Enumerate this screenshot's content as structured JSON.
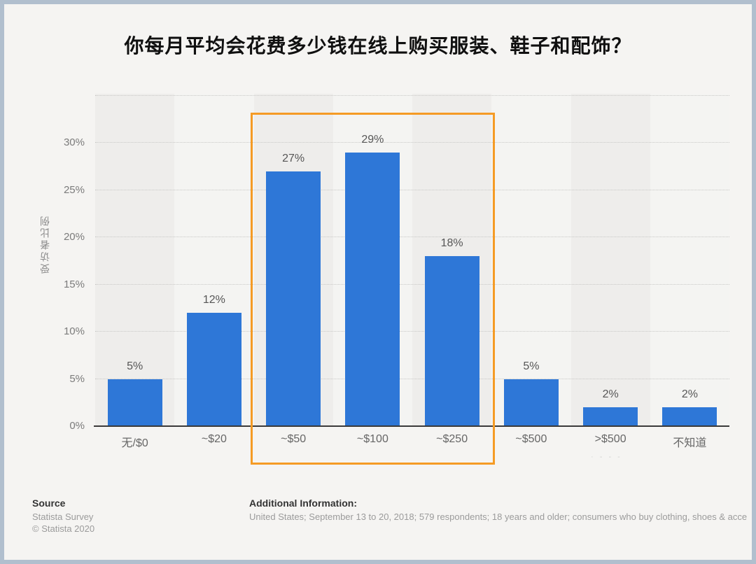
{
  "title": "你每月平均会花费多少钱在线上购买服装、鞋子和配饰？",
  "chart_data": {
    "type": "bar",
    "title": "你每月平均会花费多少钱在线上购买服装、鞋子和配饰？",
    "categories": [
      "无/$0",
      "~$20",
      "~$50",
      "~$100",
      "~$250",
      "~$500",
      ">$500",
      "不知道"
    ],
    "values": [
      5,
      12,
      27,
      29,
      18,
      5,
      2,
      2
    ],
    "value_labels": [
      "5%",
      "12%",
      "27%",
      "29%",
      "18%",
      "5%",
      "2%",
      "2%"
    ],
    "xlabel": "",
    "ylabel": "受访者比例",
    "y_ticks": [
      "0%",
      "5%",
      "10%",
      "15%",
      "20%",
      "25%",
      "30%"
    ],
    "ylim": [
      0,
      35
    ],
    "grid": "horizontal-dotted",
    "legend": "none",
    "bar_color": "#2e77d7",
    "highlighted_categories": [
      "~$50",
      "~$100",
      "~$250"
    ],
    "highlight_color": "#f59b25"
  },
  "footer": {
    "source_label": "Source",
    "source_lines": [
      "Statista Survey",
      "© Statista 2020"
    ],
    "additional_label": "Additional Information:",
    "additional_text": "United States; September 13 to 20, 2018; 579 respondents; 18 years and older; consumers who buy clothing, shoes & acce",
    "artifact": "· - - -"
  },
  "colors": {
    "frame_border": "#b1bfce",
    "background": "#f5f4f2",
    "band_dark": "#eeedeb",
    "band_light": "#f4f4f2",
    "bar": "#2e77d7",
    "highlight": "#f59b25",
    "axis": "#3a3a3a",
    "tick_text": "#7b7b7b"
  }
}
